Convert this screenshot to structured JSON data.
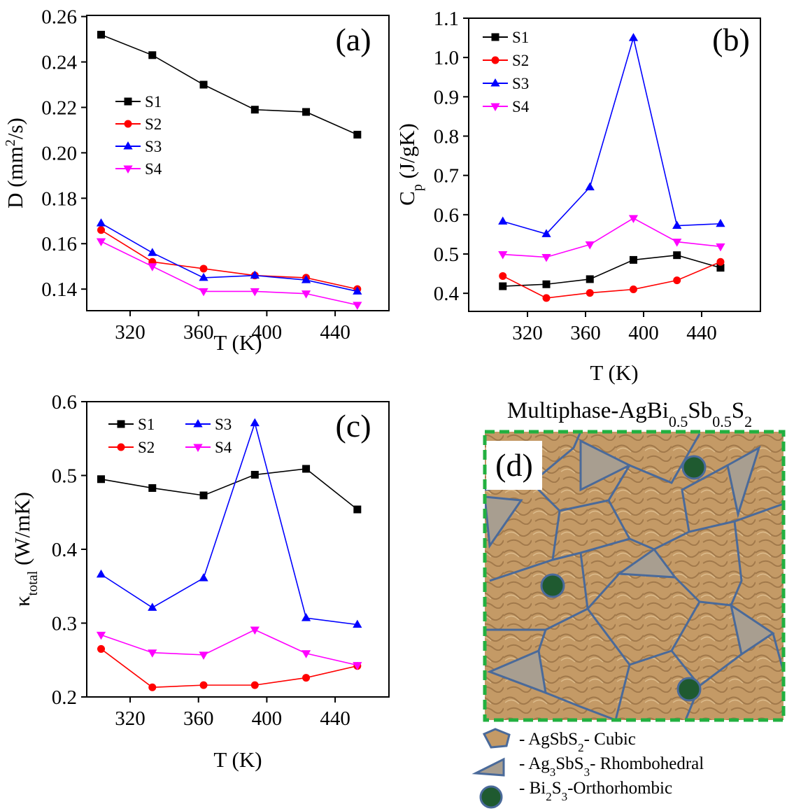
{
  "chart_data": [
    {
      "type": "line",
      "label": "(a)",
      "xlabel": "T (K)",
      "ylabel": [
        "D (mm",
        "2",
        "/s)"
      ],
      "x": [
        303,
        333,
        363,
        393,
        423,
        453
      ],
      "xlim": [
        294.6,
        471.5
      ],
      "xticks": [
        320,
        360,
        400,
        440
      ],
      "ylim": [
        0.1305,
        0.2605
      ],
      "yticks": [
        0.14,
        0.16,
        0.18,
        {
          "value": 0.2,
          "label": "0.20"
        },
        0.22,
        0.24,
        0.26
      ],
      "series": [
        {
          "name": "S1",
          "color": "#000000",
          "marker": "square",
          "values": [
            0.252,
            0.243,
            0.23,
            0.219,
            0.218,
            0.208
          ]
        },
        {
          "name": "S2",
          "color": "#ff0000",
          "marker": "circle",
          "values": [
            0.166,
            0.152,
            0.149,
            0.146,
            0.145,
            0.14
          ]
        },
        {
          "name": "S3",
          "color": "#0000ff",
          "marker": "triangle-up",
          "values": [
            0.169,
            0.156,
            0.145,
            0.146,
            0.144,
            0.139
          ]
        },
        {
          "name": "S4",
          "color": "#ff00ff",
          "marker": "triangle-down",
          "values": [
            0.161,
            0.15,
            0.139,
            0.139,
            0.138,
            0.133
          ]
        }
      ]
    },
    {
      "type": "line",
      "label": "(b)",
      "xlabel": "T (K)",
      "ylabel": [
        "C",
        "p",
        " (J/gK)"
      ],
      "x": [
        303,
        333,
        363,
        393,
        423,
        453
      ],
      "xlim": [
        279.5,
        480.5
      ],
      "xticks": [
        320,
        360,
        400,
        440
      ],
      "ylim": [
        0.354,
        1.1
      ],
      "yticks": [
        0.4,
        0.5,
        0.6,
        0.7,
        0.8,
        0.9,
        {
          "value": 1,
          "label": "1.0"
        },
        1.1
      ],
      "series": [
        {
          "name": "S1",
          "color": "#000000",
          "marker": "square",
          "values": [
            0.418,
            0.423,
            0.436,
            0.485,
            0.497,
            0.465
          ]
        },
        {
          "name": "S2",
          "color": "#ff0000",
          "marker": "circle",
          "values": [
            0.444,
            0.388,
            0.401,
            0.41,
            0.433,
            0.48
          ]
        },
        {
          "name": "S3",
          "color": "#0000ff",
          "marker": "triangle-up",
          "values": [
            0.583,
            0.551,
            0.67,
            1.05,
            0.572,
            0.577
          ]
        },
        {
          "name": "S4",
          "color": "#ff00ff",
          "marker": "triangle-down",
          "values": [
            0.499,
            0.492,
            0.524,
            0.591,
            0.531,
            0.519
          ]
        }
      ]
    },
    {
      "type": "line",
      "label": "(c)",
      "xlabel": "T (K)",
      "ylabel": [
        "κ",
        "total",
        " (W/mK)"
      ],
      "x": [
        303,
        333,
        363,
        393,
        423,
        453
      ],
      "xlim": [
        294.6,
        471.5
      ],
      "xticks": [
        320,
        360,
        400,
        440
      ],
      "ylim": [
        0.2,
        0.6
      ],
      "yticks": [
        0.2,
        0.3,
        0.4,
        0.5,
        0.6
      ],
      "series": [
        {
          "name": "S1",
          "color": "#000000",
          "marker": "square",
          "values": [
            0.495,
            0.483,
            0.473,
            0.501,
            0.509,
            0.454
          ]
        },
        {
          "name": "S2",
          "color": "#ff0000",
          "marker": "circle",
          "values": [
            0.265,
            0.213,
            0.216,
            0.216,
            0.226,
            0.242
          ]
        },
        {
          "name": "S3",
          "color": "#0000ff",
          "marker": "triangle-up",
          "values": [
            0.366,
            0.321,
            0.361,
            0.571,
            0.307,
            0.298
          ]
        },
        {
          "name": "S4",
          "color": "#ff00ff",
          "marker": "triangle-down",
          "values": [
            0.284,
            0.26,
            0.257,
            0.291,
            0.259,
            0.243
          ]
        }
      ]
    }
  ],
  "diagram": {
    "title": [
      "Multiphase-AgBi",
      "0.5",
      "Sb",
      "0.5",
      "S",
      "2"
    ],
    "label": "(d)",
    "legend": [
      [
        "- AgSbS",
        "2",
        "- Cubic"
      ],
      [
        "- Ag",
        "3",
        "SbS",
        "3",
        "- Rhombohedral"
      ],
      [
        "- Bi",
        "2",
        "S",
        "3",
        "-Orthorhombic"
      ]
    ]
  }
}
